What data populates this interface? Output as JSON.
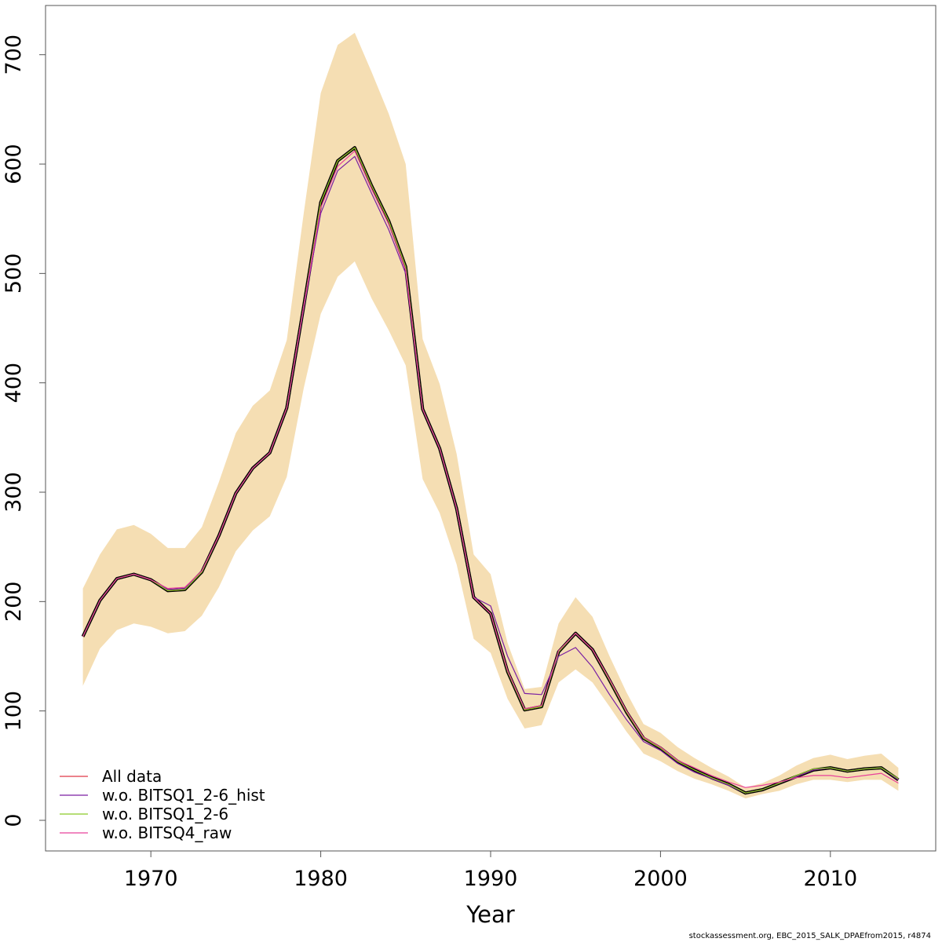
{
  "chart_data": {
    "type": "line",
    "xlabel": "Year",
    "ylabel": "",
    "xlim": [
      1963.8,
      2016.2
    ],
    "ylim": [
      -28,
      745
    ],
    "xticks": [
      1970,
      1980,
      1990,
      2000,
      2010
    ],
    "yticks": [
      0,
      100,
      200,
      300,
      400,
      500,
      600,
      700
    ],
    "grid": false,
    "legend_position": "bottom-left",
    "x": [
      1966,
      1967,
      1968,
      1969,
      1970,
      1971,
      1972,
      1973,
      1974,
      1975,
      1976,
      1977,
      1978,
      1979,
      1980,
      1981,
      1982,
      1983,
      1984,
      1985,
      1986,
      1987,
      1988,
      1989,
      1990,
      1991,
      1992,
      1993,
      1994,
      1995,
      1996,
      1997,
      1998,
      1999,
      2000,
      2001,
      2002,
      2003,
      2004,
      2005,
      2006,
      2007,
      2008,
      2009,
      2010,
      2011,
      2012,
      2013,
      2014
    ],
    "band": {
      "upper": [
        212,
        243,
        266,
        270,
        262,
        249,
        249,
        268,
        309,
        354,
        379,
        393,
        439,
        555,
        665,
        709,
        720,
        684,
        646,
        600,
        440,
        399,
        335,
        243,
        225,
        162,
        120,
        122,
        180,
        204,
        186,
        150,
        117,
        88,
        80,
        67,
        57,
        48,
        40,
        30,
        34,
        41,
        50,
        57,
        60,
        56,
        59,
        61,
        48
      ],
      "lower": [
        123,
        157,
        174,
        180,
        177,
        171,
        173,
        187,
        213,
        246,
        265,
        278,
        314,
        395,
        463,
        497,
        511,
        477,
        448,
        416,
        312,
        281,
        234,
        166,
        153,
        111,
        84,
        87,
        126,
        138,
        126,
        104,
        81,
        61,
        54,
        45,
        38,
        33,
        27,
        20,
        24,
        27,
        33,
        37,
        37,
        35,
        37,
        37,
        27
      ]
    },
    "series": [
      {
        "name": "",
        "color": "#000000",
        "width": 4,
        "values": [
          168,
          201,
          221,
          225,
          220,
          210,
          211,
          227,
          260,
          299,
          322,
          336,
          377,
          470,
          565,
          603,
          615,
          580,
          548,
          506,
          376,
          340,
          285,
          204,
          189,
          136,
          101,
          104,
          154,
          171,
          156,
          128,
          99,
          75,
          66,
          54,
          46,
          39,
          33,
          25,
          28,
          34,
          40,
          46,
          48,
          45,
          47,
          48,
          37
        ]
      },
      {
        "name": "All data",
        "color": "#e03848",
        "width": 1.2,
        "values": [
          168,
          201,
          221,
          225,
          220,
          210,
          211,
          227,
          260,
          299,
          322,
          336,
          377,
          470,
          565,
          603,
          615,
          580,
          548,
          506,
          376,
          340,
          285,
          204,
          189,
          136,
          101,
          104,
          154,
          171,
          156,
          128,
          99,
          75,
          66,
          54,
          46,
          39,
          33,
          25,
          28,
          34,
          40,
          46,
          48,
          45,
          47,
          48,
          37
        ]
      },
      {
        "name": "w.o. BITSQ1_2-6_hist",
        "color": "#7a1fa2",
        "width": 1.2,
        "values": [
          168,
          201,
          221,
          225,
          220,
          211,
          212,
          228,
          260,
          299,
          322,
          336,
          377,
          468,
          555,
          594,
          607,
          573,
          540,
          500,
          376,
          340,
          285,
          204,
          196,
          150,
          116,
          115,
          150,
          158,
          140,
          115,
          92,
          72,
          64,
          52,
          44,
          38,
          32,
          25,
          28,
          34,
          40,
          46,
          48,
          45,
          47,
          48,
          37
        ]
      },
      {
        "name": "w.o. BITSQ1_2-6",
        "color": "#8ac926",
        "width": 1.2,
        "values": [
          168,
          201,
          221,
          225,
          220,
          210,
          211,
          227,
          260,
          299,
          322,
          336,
          377,
          470,
          565,
          603,
          615,
          580,
          548,
          506,
          376,
          340,
          285,
          204,
          189,
          136,
          101,
          104,
          154,
          171,
          156,
          128,
          99,
          75,
          66,
          54,
          46,
          39,
          33,
          25,
          28,
          34,
          41,
          47,
          48,
          45,
          47,
          48,
          38
        ]
      },
      {
        "name": "w.o. BITSQ4_raw",
        "color": "#e8409a",
        "width": 1.2,
        "values": [
          168,
          201,
          221,
          225,
          220,
          212,
          213,
          228,
          260,
          299,
          322,
          336,
          377,
          470,
          560,
          598,
          612,
          577,
          545,
          503,
          376,
          340,
          285,
          204,
          189,
          137,
          102,
          105,
          155,
          171,
          156,
          129,
          100,
          76,
          67,
          55,
          48,
          41,
          35,
          30,
          32,
          35,
          39,
          41,
          41,
          39,
          41,
          43,
          34
        ]
      }
    ]
  },
  "legend": [
    {
      "label": "All data",
      "color": "#e03848"
    },
    {
      "label": "w.o. BITSQ1_2-6_hist",
      "color": "#7a1fa2"
    },
    {
      "label": "w.o. BITSQ1_2-6",
      "color": "#8ac926"
    },
    {
      "label": "w.o. BITSQ4_raw",
      "color": "#e8409a"
    }
  ],
  "band_color": "#f5deb3",
  "footer": "stockassessment.org, EBC_2015_SALK_DPAEfrom2015, r4874"
}
